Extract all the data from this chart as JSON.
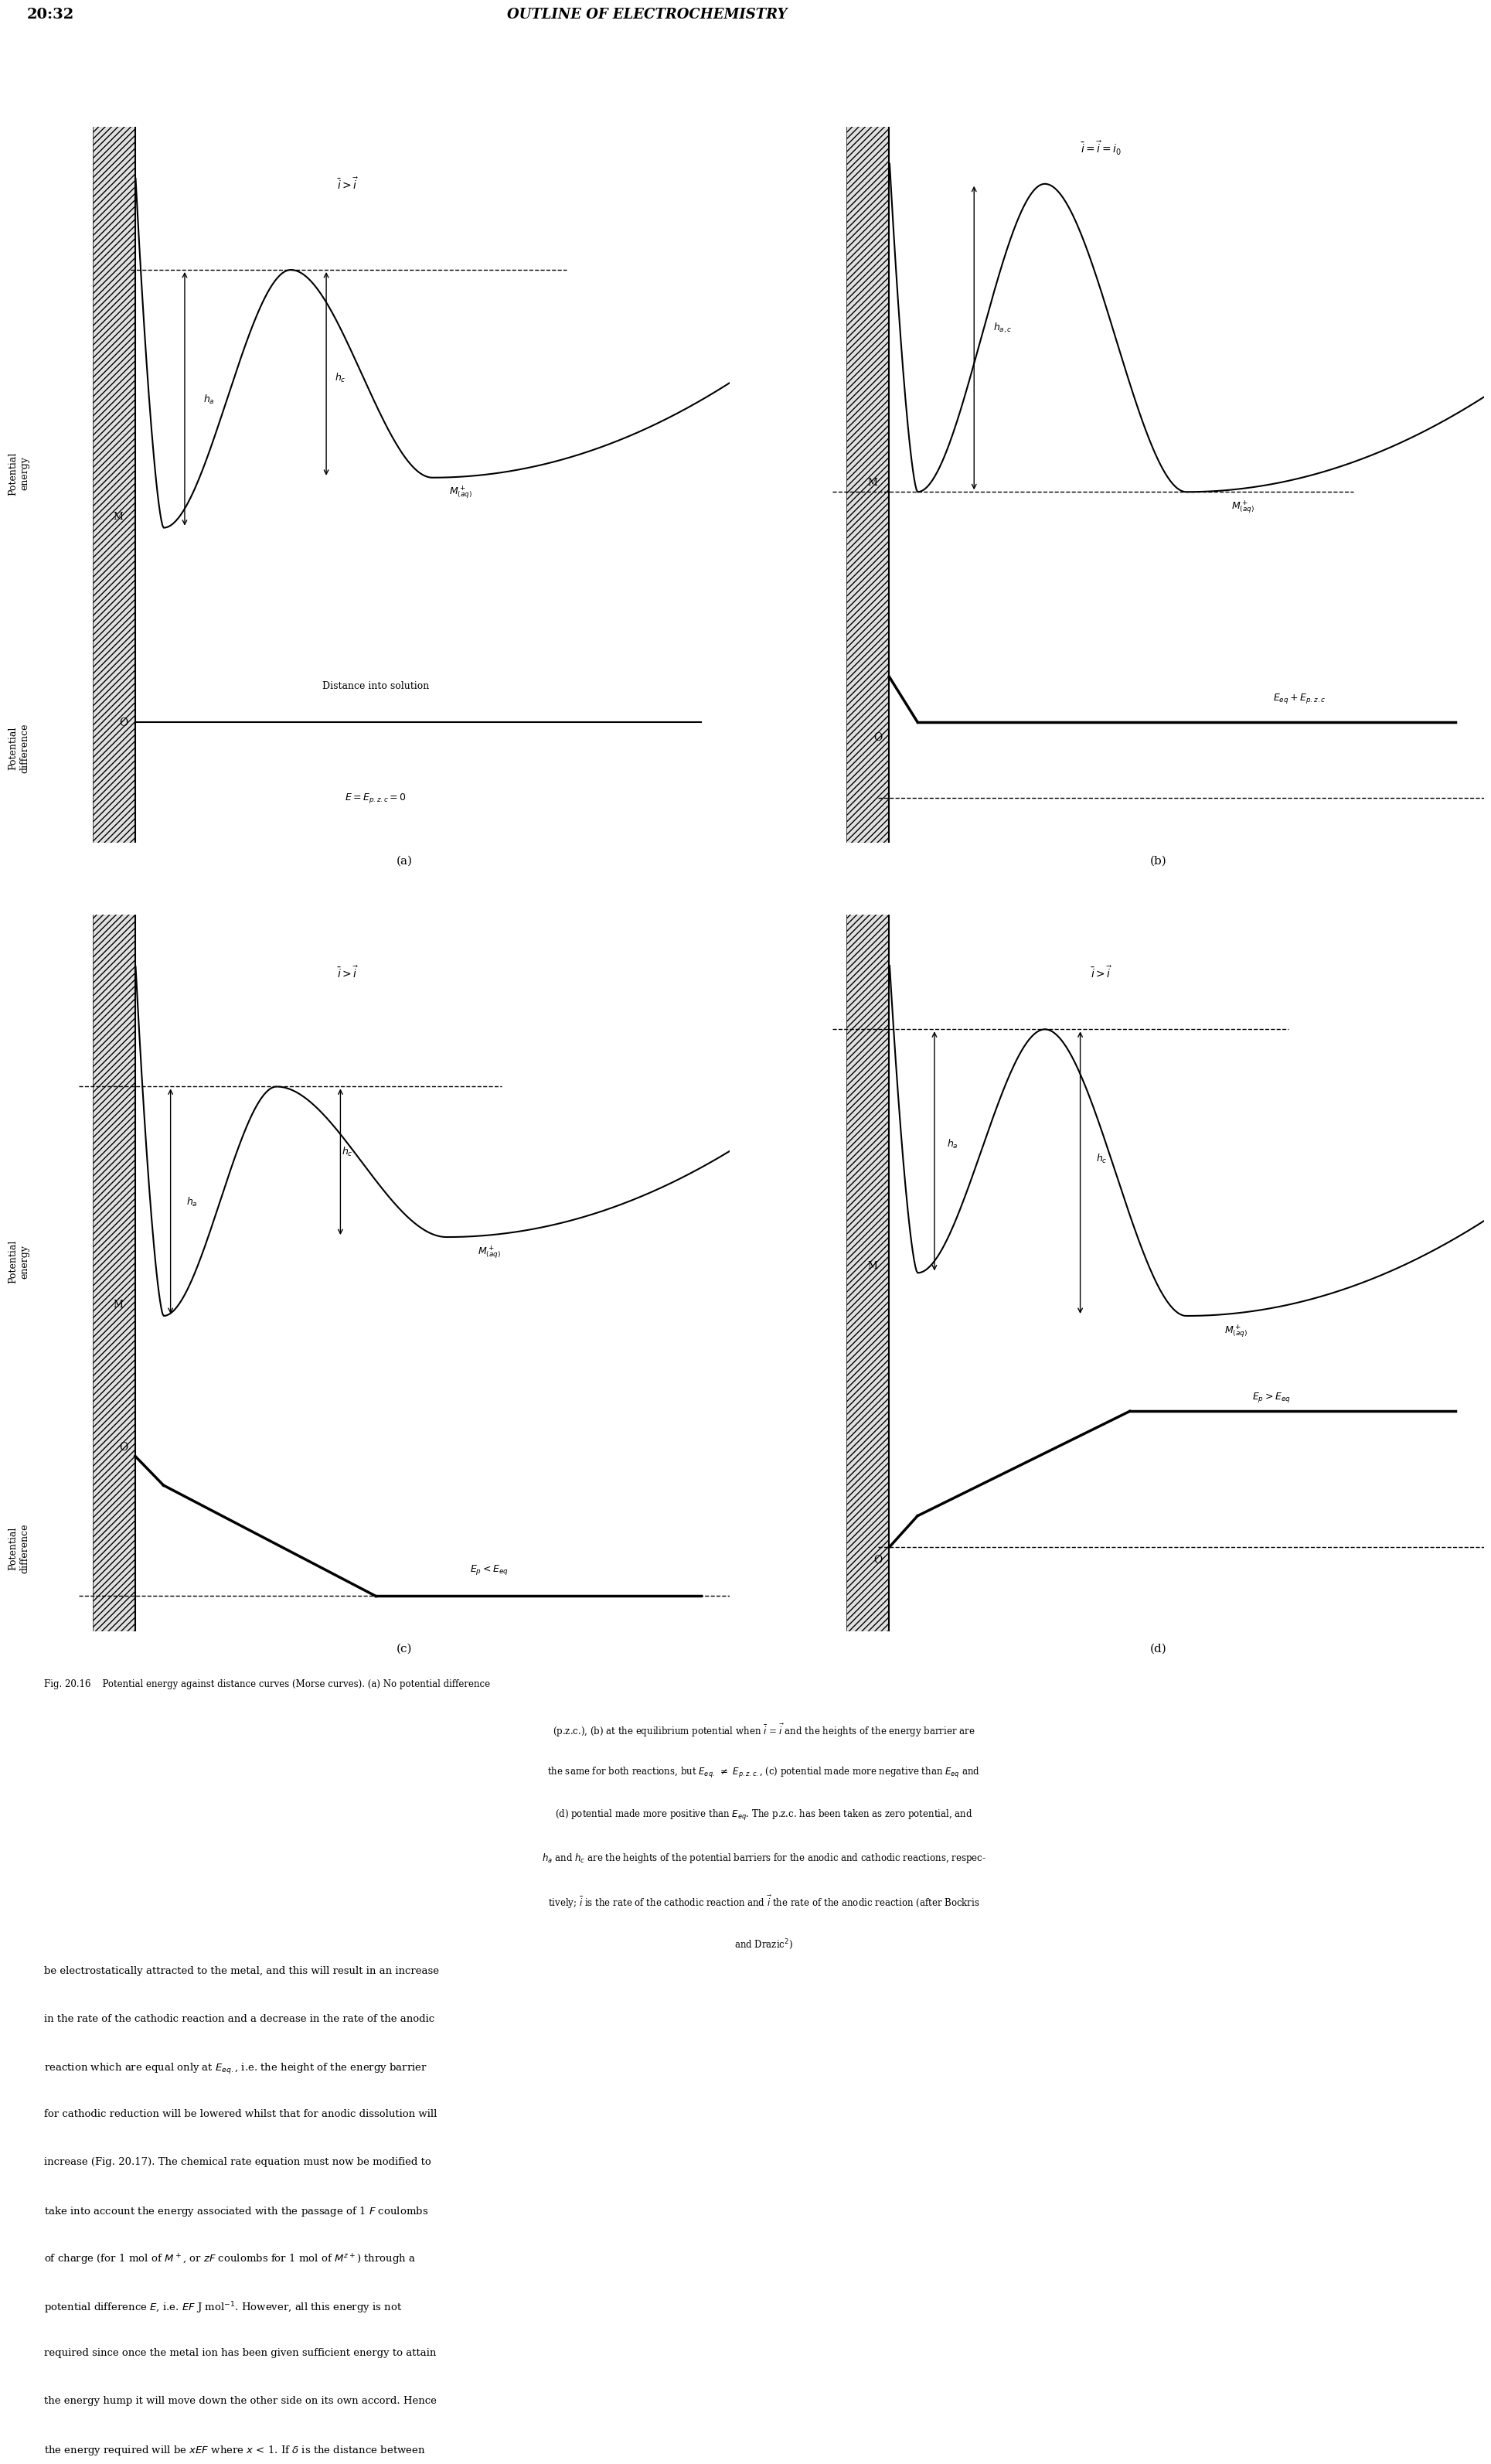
{
  "page_header_left": "20:32",
  "page_header_center": "OUTLINE OF ELECTROCHEMISTRY",
  "fig_label": "Fig. 20.16",
  "caption": "Potential energy against distance curves (Morse curves). (a) No potential difference\n(p.z.c.), (b) at the equilibrium potential when $\\bar{i}$ = $\\vec{i}$ and the heights of the energy barrier are\nthe same for both reactions, but $E_{eq.}$ ≠ $E_{p.z.c.}$, (c) potential made more negative than $E_{eq}$ and\n(d) potential made more positive than $E_{eq}$. The p.z.c. has been taken as zero potential, and\n$h_a$ and $h_c$ are the heights of the potential barriers for the anodic and cathodic reactions, respec-\ntively; $\\bar{i}$ is the rate of the cathodic reaction and $\\vec{i}$ the rate of the anodic reaction (after Bockris\nand Drazic²)",
  "bg_color": "#ffffff",
  "line_color": "#000000",
  "hatch_color": "#000000"
}
